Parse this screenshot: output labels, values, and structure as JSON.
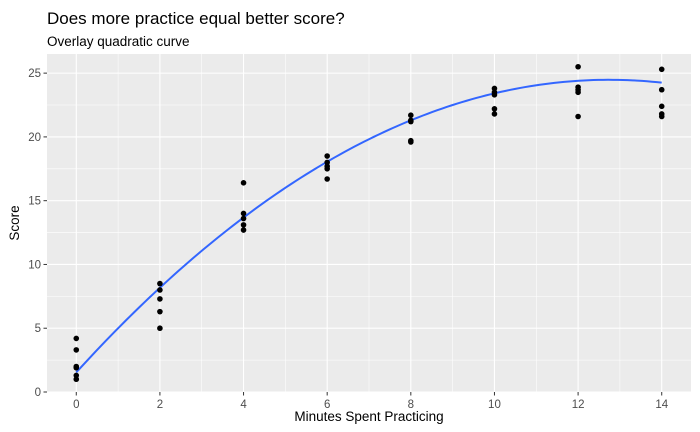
{
  "chart_data": {
    "type": "scatter",
    "title": "Does more practice equal better score?",
    "subtitle": "Overlay quadratic curve",
    "xlabel": "Minutes Spent Practicing",
    "ylabel": "Score",
    "xlim": [
      -0.7,
      14.7
    ],
    "ylim": [
      0,
      26.5
    ],
    "x_ticks": [
      0,
      2,
      4,
      6,
      8,
      10,
      12,
      14
    ],
    "y_ticks": [
      0,
      5,
      10,
      15,
      20,
      25
    ],
    "grid": true,
    "legend": "none",
    "colors": {
      "panel_bg": "#EBEBEB",
      "grid_major": "#FFFFFF",
      "point": "#000000",
      "curve": "#3366FF"
    },
    "points": [
      {
        "x": 0,
        "y": 4.2
      },
      {
        "x": 0,
        "y": 3.3
      },
      {
        "x": 0,
        "y": 2.0
      },
      {
        "x": 0,
        "y": 1.9
      },
      {
        "x": 0,
        "y": 1.3
      },
      {
        "x": 0,
        "y": 1.0
      },
      {
        "x": 2,
        "y": 8.5
      },
      {
        "x": 2,
        "y": 8.0
      },
      {
        "x": 2,
        "y": 7.3
      },
      {
        "x": 2,
        "y": 6.3
      },
      {
        "x": 2,
        "y": 5.0
      },
      {
        "x": 4,
        "y": 16.4
      },
      {
        "x": 4,
        "y": 14.0
      },
      {
        "x": 4,
        "y": 13.6
      },
      {
        "x": 4,
        "y": 13.1
      },
      {
        "x": 4,
        "y": 12.7
      },
      {
        "x": 6,
        "y": 18.5
      },
      {
        "x": 6,
        "y": 18.0
      },
      {
        "x": 6,
        "y": 17.7
      },
      {
        "x": 6,
        "y": 17.5
      },
      {
        "x": 6,
        "y": 16.7
      },
      {
        "x": 8,
        "y": 21.7
      },
      {
        "x": 8,
        "y": 21.3
      },
      {
        "x": 8,
        "y": 21.2
      },
      {
        "x": 8,
        "y": 19.7
      },
      {
        "x": 8,
        "y": 19.6
      },
      {
        "x": 10,
        "y": 23.8
      },
      {
        "x": 10,
        "y": 23.5
      },
      {
        "x": 10,
        "y": 23.3
      },
      {
        "x": 10,
        "y": 22.2
      },
      {
        "x": 10,
        "y": 21.8
      },
      {
        "x": 12,
        "y": 25.5
      },
      {
        "x": 12,
        "y": 23.9
      },
      {
        "x": 12,
        "y": 23.7
      },
      {
        "x": 12,
        "y": 23.5
      },
      {
        "x": 12,
        "y": 21.6
      },
      {
        "x": 14,
        "y": 25.3
      },
      {
        "x": 14,
        "y": 23.7
      },
      {
        "x": 14,
        "y": 22.4
      },
      {
        "x": 14,
        "y": 21.8
      },
      {
        "x": 14,
        "y": 21.6
      }
    ],
    "series": [
      {
        "type": "quadratic_fit",
        "coefficients": {
          "a": -0.1413,
          "b": 3.6007,
          "c": 1.5381
        },
        "x_range": [
          0,
          14
        ]
      }
    ]
  }
}
